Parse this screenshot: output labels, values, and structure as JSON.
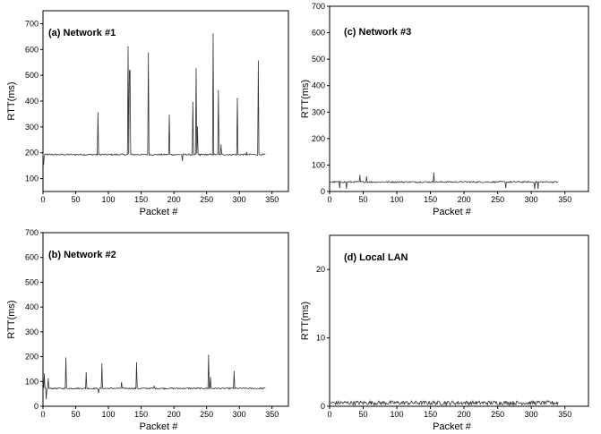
{
  "chart_data": [
    {
      "type": "line",
      "title": "(a) Network #1",
      "xlabel": "Packet #",
      "ylabel": "RTT(ms)",
      "xlim": [
        0,
        375
      ],
      "ylim": [
        50,
        750
      ],
      "xticks": [
        "0",
        "50",
        "100",
        "150",
        "200",
        "250",
        "300",
        "350"
      ],
      "yticks": [
        "100",
        "200",
        "300",
        "400",
        "500",
        "600",
        "700"
      ],
      "xtick_values": [
        0,
        50,
        100,
        150,
        200,
        250,
        300,
        350
      ],
      "ytick_values": [
        100,
        200,
        300,
        400,
        500,
        600,
        700
      ],
      "base_rtt": 193,
      "x_max": 340,
      "spikes": [
        {
          "x": 1,
          "y": 155
        },
        {
          "x": 84,
          "y": 355
        },
        {
          "x": 130,
          "y": 610
        },
        {
          "x": 132,
          "y": 515
        },
        {
          "x": 133,
          "y": 520
        },
        {
          "x": 161,
          "y": 585
        },
        {
          "x": 193,
          "y": 345
        },
        {
          "x": 213,
          "y": 170
        },
        {
          "x": 229,
          "y": 395
        },
        {
          "x": 234,
          "y": 525
        },
        {
          "x": 236,
          "y": 300
        },
        {
          "x": 240,
          "y": 190
        },
        {
          "x": 260,
          "y": 660
        },
        {
          "x": 268,
          "y": 440
        },
        {
          "x": 272,
          "y": 230
        },
        {
          "x": 297,
          "y": 410
        },
        {
          "x": 311,
          "y": 200
        },
        {
          "x": 329,
          "y": 555
        }
      ]
    },
    {
      "type": "line",
      "title": "(b) Network #2",
      "xlabel": "Packet #",
      "ylabel": "RTT(ms)",
      "xlim": [
        0,
        375
      ],
      "ylim": [
        0,
        700
      ],
      "xticks": [
        "0",
        "50",
        "100",
        "150",
        "200",
        "250",
        "300",
        "350"
      ],
      "yticks": [
        "0",
        "100",
        "200",
        "300",
        "400",
        "500",
        "600",
        "700"
      ],
      "xtick_values": [
        0,
        50,
        100,
        150,
        200,
        250,
        300,
        350
      ],
      "ytick_values": [
        0,
        100,
        200,
        300,
        400,
        500,
        600,
        700
      ],
      "base_rtt": 72,
      "x_max": 340,
      "spikes": [
        {
          "x": 2,
          "y": 130
        },
        {
          "x": 5,
          "y": 30
        },
        {
          "x": 8,
          "y": 110
        },
        {
          "x": 35,
          "y": 195
        },
        {
          "x": 66,
          "y": 135
        },
        {
          "x": 85,
          "y": 55
        },
        {
          "x": 90,
          "y": 170
        },
        {
          "x": 120,
          "y": 95
        },
        {
          "x": 143,
          "y": 175
        },
        {
          "x": 170,
          "y": 80
        },
        {
          "x": 253,
          "y": 205
        },
        {
          "x": 256,
          "y": 115
        },
        {
          "x": 292,
          "y": 140
        }
      ]
    },
    {
      "type": "line",
      "title": "(c) Network #3",
      "xlabel": "Packet #",
      "ylabel": "RTT(ms)",
      "xlim": [
        0,
        385
      ],
      "ylim": [
        0,
        700
      ],
      "xticks": [
        "0",
        "50",
        "100",
        "150",
        "200",
        "250",
        "300",
        "350"
      ],
      "yticks": [
        "0",
        "100",
        "200",
        "300",
        "400",
        "500",
        "600",
        "700"
      ],
      "xtick_values": [
        0,
        50,
        100,
        150,
        200,
        250,
        300,
        350
      ],
      "ytick_values": [
        0,
        100,
        200,
        300,
        400,
        500,
        600,
        700
      ],
      "base_rtt": 36,
      "x_max": 340,
      "spikes": [
        {
          "x": 15,
          "y": 15
        },
        {
          "x": 25,
          "y": 12
        },
        {
          "x": 45,
          "y": 60
        },
        {
          "x": 55,
          "y": 55
        },
        {
          "x": 155,
          "y": 70
        },
        {
          "x": 262,
          "y": 15
        },
        {
          "x": 305,
          "y": 10
        },
        {
          "x": 310,
          "y": 12
        }
      ]
    },
    {
      "type": "line",
      "title": "(d) Local LAN",
      "xlabel": "Packet #",
      "ylabel": "RTT(ms)",
      "xlim": [
        0,
        385
      ],
      "ylim": [
        0,
        25
      ],
      "xticks": [
        "0",
        "50",
        "100",
        "150",
        "200",
        "250",
        "300",
        "350"
      ],
      "yticks": [
        "0",
        "10",
        "20"
      ],
      "xtick_values": [
        0,
        50,
        100,
        150,
        200,
        250,
        300,
        350
      ],
      "ytick_values": [
        0,
        10,
        20
      ],
      "base_rtt": 0.5,
      "x_max": 340,
      "spikes": []
    }
  ]
}
